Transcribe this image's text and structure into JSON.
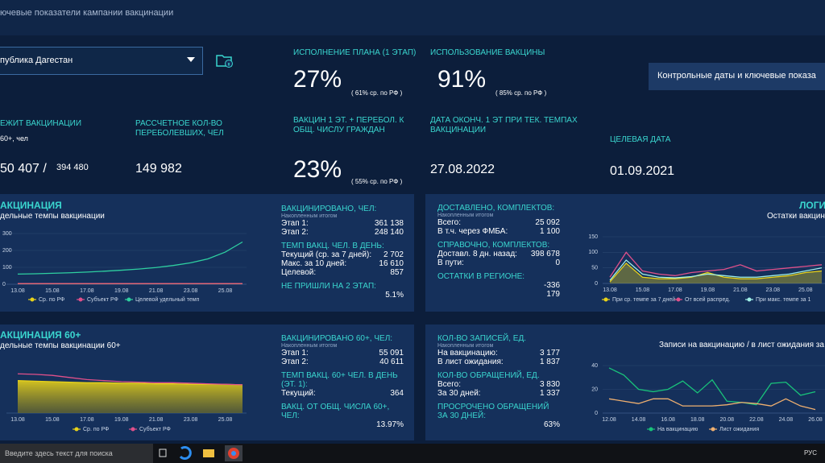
{
  "header": {
    "title": "ючевые показатели кампании вакцинации"
  },
  "region": "публика Дагестан",
  "button": "Контрольные даты и ключевые показа",
  "kpis": [
    {
      "label": "ИСПОЛНЕНИЕ ПЛАНА (1 ЭТАП)",
      "value": "27%",
      "note": "( 61% ср. по РФ )"
    },
    {
      "label": "ИСПОЛЬЗОВАНИЕ ВАКЦИНЫ",
      "value": "91%",
      "note": "( 85% ср. по РФ )"
    },
    {
      "label": "ЕЖИТ ВАКЦИНАЦИИ",
      "sub": "60+, чел",
      "value": "50 407 /",
      "note": "394 480"
    },
    {
      "label": "РАССЧЕТНОЕ КОЛ-ВО ПЕРЕБОЛЕВШИХ, ЧЕЛ",
      "value": "149 982"
    },
    {
      "label": "ВАКЦИН 1 ЭТ. + ПЕРЕБОЛ. К ОБЩ. ЧИСЛУ ГРАЖДАН",
      "value": "23%",
      "note": "( 55% ср. по РФ )"
    },
    {
      "label": "ДАТА ОКОНЧ. 1 ЭТ ПРИ ТЕК. ТЕМПАХ ВАКЦИНАЦИИ",
      "value": "27.08.2022"
    },
    {
      "label": "ЦЕЛЕВАЯ ДАТА",
      "value": "01.09.2021"
    }
  ],
  "stats": [
    [
      {
        "heading": "ВАКЦИНИРОВАНО, ЧЕЛ:",
        "note": "Накопленным итогом",
        "rows": [
          [
            "Этап 1:",
            "361 138"
          ],
          [
            "Этап 2:",
            "248 140"
          ]
        ]
      },
      {
        "heading": "ТЕМП ВАКЦ. ЧЕЛ. В ДЕНЬ:",
        "rows": [
          [
            "Текущий (ср. за 7 дней):",
            "2 702"
          ],
          [
            "Макс. за 10 дней:",
            "16 610"
          ],
          [
            "Целевой:",
            "857"
          ]
        ]
      },
      {
        "heading": "НЕ ПРИШЛИ НА 2 ЭТАП:",
        "rows": [
          [
            "5.1%"
          ]
        ]
      }
    ],
    [
      {
        "heading": "ВАКЦИНИРОВАНО 60+, ЧЕЛ:",
        "note": "Накопленным итогом",
        "rows": [
          [
            "Этап 1:",
            "55 091"
          ],
          [
            "Этап 2:",
            "40 611"
          ]
        ]
      },
      {
        "heading": "ТЕМП ВАКЦ. 60+ ЧЕЛ. В ДЕНЬ (ЭТ. 1):",
        "rows": [
          [
            "Текущий:",
            "364"
          ]
        ]
      },
      {
        "heading": "ВАКЦ. ОТ ОБЩ. ЧИСЛА 60+, ЧЕЛ:",
        "rows": [
          [
            "13.97%"
          ]
        ]
      }
    ],
    [
      {
        "heading": "ДОСТАВЛЕНО, КОМПЛЕКТОВ:",
        "note": "Накопленным итогом",
        "rows": [
          [
            "Всего:",
            "25 092"
          ],
          [
            "В т.ч. через ФМБА:",
            "1 100"
          ]
        ]
      },
      {
        "heading": "СПРАВОЧНО, КОМПЛЕКТОВ:",
        "rows": [
          [
            "Доставл. 8 дн. назад:",
            "398 678"
          ],
          [
            "В пути:",
            "0"
          ]
        ]
      },
      {
        "heading": "ОСТАТКИ В РЕГИОНЕ:",
        "rows": [
          [
            "-336"
          ],
          [
            "179"
          ]
        ]
      }
    ],
    [
      {
        "heading": "КОЛ-ВО ЗАПИСЕЙ, ЕД.",
        "note": "Накопленным итогом",
        "rows": [
          [
            "На вакцинацию:",
            "3 177"
          ],
          [
            "В лист ожидания:",
            "1 837"
          ]
        ]
      },
      {
        "heading": "КОЛ-ВО ОБРАЩЕНИЙ, ЕД.",
        "rows": [
          [
            "Всего:",
            "3 830"
          ],
          [
            "За 30 дней:",
            "1 337"
          ]
        ]
      },
      {
        "heading": "ПРОСРОЧЕНО ОБРАЩЕНИЙ ЗА 30 ДНЕЙ:",
        "rows": [
          [
            "63%"
          ]
        ]
      }
    ]
  ],
  "chart_data": [
    {
      "type": "line",
      "title": "АКЦИНАЦИЯ",
      "subtitle": "дельные темпы вакцинации",
      "categories": [
        "13.08",
        null,
        "15.08",
        null,
        "17.08",
        null,
        "19.08",
        null,
        "21.08",
        null,
        "23.08",
        null,
        "25.08",
        null
      ],
      "ylim": [
        0,
        300
      ],
      "yticks": [
        0,
        100,
        200,
        300
      ],
      "grid": true,
      "series": [
        {
          "name": "Ср. по РФ",
          "color": "#e8d21a",
          "values": [
            3,
            3,
            3,
            3,
            3,
            3,
            3,
            3,
            3,
            3,
            3,
            3,
            3,
            3
          ]
        },
        {
          "name": "Субъект РФ",
          "color": "#e0508a",
          "values": [
            4,
            4,
            4,
            4,
            4,
            4,
            4,
            4,
            4,
            4,
            4,
            4,
            4,
            4
          ]
        },
        {
          "name": "Целевой удельный темп",
          "color": "#2ecfa0",
          "values": [
            60,
            62,
            65,
            68,
            72,
            77,
            83,
            90,
            99,
            111,
            127,
            150,
            190,
            250
          ]
        }
      ]
    },
    {
      "type": "line",
      "title": "АКЦИНАЦИЯ 60+",
      "subtitle": "дельные темпы вакцинации 60+",
      "categories": [
        "13.08",
        null,
        "15.08",
        null,
        "17.08",
        null,
        "19.08",
        null,
        "21.08",
        null,
        "23.08",
        null,
        "25.08",
        null
      ],
      "ylim": [
        0,
        100
      ],
      "grid": true,
      "series": [
        {
          "name": "Ср. по РФ",
          "color": "#e8d21a",
          "area": true,
          "values": [
            62,
            61,
            60,
            59,
            58,
            58,
            57,
            57,
            56,
            56,
            55,
            55,
            55,
            54
          ]
        },
        {
          "name": "Субъект РФ",
          "color": "#e0508a",
          "values": [
            75,
            74,
            72,
            68,
            64,
            62,
            60,
            59,
            58,
            58,
            57,
            56,
            55,
            54
          ]
        }
      ]
    },
    {
      "type": "line",
      "title": "ЛОГИ",
      "subtitle": "Остатки вакцин",
      "categories": [
        "13.08",
        null,
        "15.08",
        null,
        "17.08",
        null,
        "19.08",
        null,
        "21.08",
        null,
        "23.08",
        null,
        "25.08",
        null
      ],
      "ylim": [
        0,
        150
      ],
      "yticks": [
        0,
        50,
        100,
        150
      ],
      "grid": true,
      "series": [
        {
          "name": "При ср. темпе за 7 дней",
          "color": "#e8d21a",
          "area": true,
          "values": [
            5,
            65,
            20,
            15,
            15,
            20,
            35,
            20,
            15,
            15,
            20,
            25,
            35,
            40
          ]
        },
        {
          "name": "От всей распред.",
          "color": "#e0508a",
          "values": [
            20,
            100,
            40,
            30,
            25,
            35,
            40,
            45,
            60,
            40,
            45,
            50,
            55,
            60
          ]
        },
        {
          "name": "При макс. темпе за 1",
          "color": "#a0f0e8",
          "values": [
            10,
            75,
            30,
            20,
            18,
            22,
            30,
            25,
            20,
            20,
            25,
            30,
            40,
            50
          ]
        }
      ]
    },
    {
      "type": "line",
      "title": "Записи на вакцинацию / в лист ожидания за",
      "categories": [
        "12.08",
        null,
        "14.08",
        null,
        "16.08",
        null,
        "18.08",
        null,
        "20.08",
        null,
        "22.08",
        null,
        "24.08",
        null,
        "26.08"
      ],
      "ylim": [
        0,
        40
      ],
      "yticks": [
        0,
        20,
        40
      ],
      "grid": true,
      "series": [
        {
          "name": "На вакцинацию",
          "color": "#19c27a",
          "values": [
            38,
            32,
            20,
            18,
            20,
            27,
            17,
            28,
            10,
            9,
            7,
            25,
            26,
            15,
            18
          ]
        },
        {
          "name": "Лист ожидания",
          "color": "#f0b070",
          "values": [
            12,
            10,
            8,
            12,
            12,
            6,
            6,
            6,
            7,
            9,
            8,
            6,
            12,
            6,
            3
          ]
        }
      ]
    }
  ],
  "taskbar": {
    "search": "Введите здесь текст для поиска",
    "lang": "РУС"
  }
}
